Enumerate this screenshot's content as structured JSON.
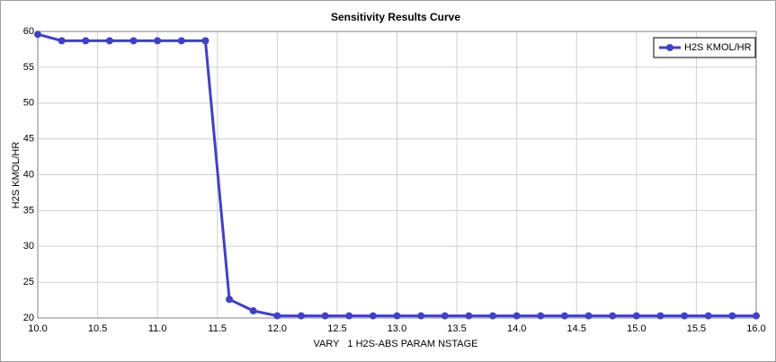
{
  "chart_data": {
    "type": "line",
    "title": "Sensitivity Results Curve",
    "xlabel": "VARY   1 H2S-ABS PARAM NSTAGE",
    "ylabel": "H2S KMOL/HR",
    "x": [
      10,
      10.2,
      10.4,
      10.6,
      10.8,
      11,
      11.2,
      11.4,
      11.6,
      11.8,
      12,
      12.2,
      12.4,
      12.6,
      12.8,
      13,
      13.2,
      13.4,
      13.6,
      13.8,
      14,
      14.2,
      14.4,
      14.6,
      14.8,
      15,
      15.2,
      15.4,
      15.6,
      15.8,
      16
    ],
    "series": [
      {
        "name": "H2S KMOL/HR",
        "color": "#4141c3",
        "values": [
          59.6,
          58.7,
          58.7,
          58.7,
          58.7,
          58.7,
          58.7,
          58.7,
          22.6,
          21.0,
          20.3,
          20.3,
          20.3,
          20.3,
          20.3,
          20.3,
          20.3,
          20.3,
          20.3,
          20.3,
          20.3,
          20.3,
          20.3,
          20.3,
          20.3,
          20.3,
          20.3,
          20.3,
          20.3,
          20.3,
          20.3
        ]
      }
    ],
    "xlim": [
      10,
      16
    ],
    "ylim": [
      20,
      60
    ],
    "xticks": [
      {
        "value": 10,
        "label": "10.0"
      },
      10.5,
      {
        "value": 11,
        "label": "11.0"
      },
      11.5,
      {
        "value": 12,
        "label": "12.0"
      },
      12.5,
      {
        "value": 13,
        "label": "13.0"
      },
      13.5,
      {
        "value": 14,
        "label": "14.0"
      },
      14.5,
      {
        "value": 15,
        "label": "15.0"
      },
      15.5,
      {
        "value": 16,
        "label": "16.0"
      }
    ],
    "yticks": [
      20,
      25,
      30,
      35,
      40,
      45,
      50,
      55,
      60
    ],
    "grid": true,
    "legend": "upper right"
  }
}
